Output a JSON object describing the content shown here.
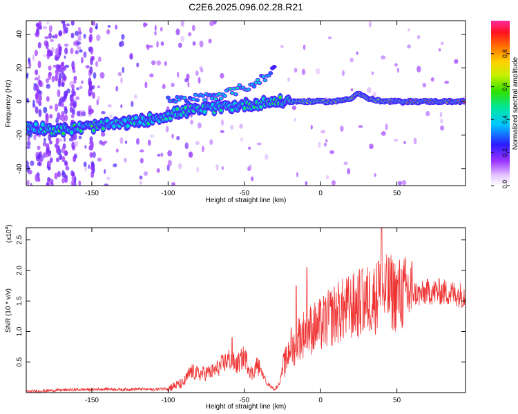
{
  "figure": {
    "title": "C2E6.2025.096.02.28.R21"
  },
  "chart_data": [
    {
      "type": "heatmap",
      "title": "C2E6.2025.096.02.28.R21",
      "xlabel": "Height of straight line (km)",
      "ylabel": "Frequency (Hz)",
      "xlim": [
        -193,
        95
      ],
      "ylim": [
        -50,
        48
      ],
      "xticks": [
        -150,
        -100,
        -50,
        0,
        50
      ],
      "yticks": [
        -40,
        -20,
        0,
        20,
        40
      ],
      "colorbar": {
        "label": "Normalized spectral amplitude",
        "range": [
          0,
          1
        ],
        "ticks": [
          0.0,
          0.2,
          0.4,
          0.6,
          0.8
        ],
        "tick_labels": [
          "0.0",
          "0.2",
          "0.4",
          "0.6",
          "0.8"
        ],
        "colormap": "rainbow (white-violet-blue-cyan-green-yellow-orange-red-magenta)"
      },
      "ridge": [
        {
          "x": -190,
          "y": -15,
          "amp": 0.45
        },
        {
          "x": -180,
          "y": -16,
          "amp": 0.45
        },
        {
          "x": -170,
          "y": -17,
          "amp": 0.5
        },
        {
          "x": -160,
          "y": -16,
          "amp": 0.5
        },
        {
          "x": -150,
          "y": -15,
          "amp": 0.55
        },
        {
          "x": -140,
          "y": -14,
          "amp": 0.5
        },
        {
          "x": -130,
          "y": -13,
          "amp": 0.45
        },
        {
          "x": -120,
          "y": -12,
          "amp": 0.45
        },
        {
          "x": -110,
          "y": -10,
          "amp": 0.45
        },
        {
          "x": -100,
          "y": -8,
          "amp": 0.45
        },
        {
          "x": -90,
          "y": -6,
          "amp": 0.5
        },
        {
          "x": -80,
          "y": -5,
          "amp": 0.45
        },
        {
          "x": -70,
          "y": -4,
          "amp": 0.45
        },
        {
          "x": -60,
          "y": -3,
          "amp": 0.45
        },
        {
          "x": -50,
          "y": -2,
          "amp": 0.5
        },
        {
          "x": -40,
          "y": -1,
          "amp": 0.5
        },
        {
          "x": -30,
          "y": 0,
          "amp": 0.55
        },
        {
          "x": -20,
          "y": 0,
          "amp": 0.6
        },
        {
          "x": -10,
          "y": 0,
          "amp": 0.7
        },
        {
          "x": 0,
          "y": 0,
          "amp": 0.8
        },
        {
          "x": 10,
          "y": 0,
          "amp": 0.8
        },
        {
          "x": 20,
          "y": 2,
          "amp": 0.8
        },
        {
          "x": 25,
          "y": 5,
          "amp": 0.85
        },
        {
          "x": 30,
          "y": 2,
          "amp": 0.85
        },
        {
          "x": 40,
          "y": 0,
          "amp": 0.85
        },
        {
          "x": 50,
          "y": 0,
          "amp": 0.9
        },
        {
          "x": 60,
          "y": 0,
          "amp": 0.9
        },
        {
          "x": 70,
          "y": 0,
          "amp": 0.9
        },
        {
          "x": 80,
          "y": 0,
          "amp": 0.9
        },
        {
          "x": 93,
          "y": 0,
          "amp": 0.9
        }
      ],
      "branch": [
        {
          "x": -100,
          "y": 0,
          "amp": 0.35
        },
        {
          "x": -80,
          "y": 2,
          "amp": 0.35
        },
        {
          "x": -60,
          "y": 5,
          "amp": 0.4
        },
        {
          "x": -45,
          "y": 10,
          "amp": 0.4
        },
        {
          "x": -35,
          "y": 15,
          "amp": 0.35
        },
        {
          "x": -30,
          "y": 20,
          "amp": 0.25
        }
      ]
    },
    {
      "type": "line",
      "xlabel": "Height of straight line (km)",
      "ylabel": "SNR (10 * v/v)",
      "multiplier_label": "(x10",
      "multiplier_exponent": "4",
      "xlim": [
        -193,
        95
      ],
      "ylim": [
        0,
        2.7
      ],
      "xticks": [
        -150,
        -100,
        -50,
        0,
        50
      ],
      "yticks": [
        0.5,
        1.0,
        1.5,
        2.0,
        2.5
      ],
      "ytick_labels": [
        "0.5",
        "1.0",
        "1.5",
        "2.0",
        "2.5"
      ],
      "line_color": "#ee3333",
      "series": [
        {
          "x": [
            -193,
            -180,
            -170,
            -160,
            -150,
            -140,
            -130,
            -120,
            -110,
            -100,
            -95,
            -90,
            -85,
            -80,
            -75,
            -70,
            -65,
            -60,
            -55,
            -50,
            -45,
            -42,
            -40,
            -35,
            -30,
            -27,
            -25,
            -22,
            -20,
            -18,
            -15,
            -12,
            -10,
            -5,
            0,
            5,
            10,
            20,
            25,
            30,
            35,
            40,
            45,
            50,
            55,
            60,
            65,
            70,
            80,
            93
          ],
          "y": [
            0.02,
            0.03,
            0.04,
            0.05,
            0.05,
            0.06,
            0.05,
            0.06,
            0.05,
            0.07,
            0.12,
            0.15,
            0.35,
            0.3,
            0.32,
            0.35,
            0.45,
            0.55,
            0.45,
            0.6,
            0.3,
            0.45,
            0.4,
            0.15,
            0.05,
            0.15,
            0.4,
            0.55,
            0.8,
            0.7,
            0.9,
            0.95,
            1.0,
            1.05,
            1.1,
            1.2,
            1.3,
            1.4,
            1.45,
            1.5,
            1.55,
            1.6,
            1.65,
            1.6,
            1.62,
            1.65,
            1.6,
            1.65,
            1.65,
            1.6
          ]
        }
      ],
      "peaks": [
        {
          "x": 40,
          "y": 2.7
        },
        {
          "x": -9,
          "y": 2.05
        },
        {
          "x": -16,
          "y": 1.75
        },
        {
          "x": -58,
          "y": 0.9
        },
        {
          "x": 38,
          "y": 2.15
        },
        {
          "x": 27,
          "y": 2.0
        }
      ]
    }
  ]
}
